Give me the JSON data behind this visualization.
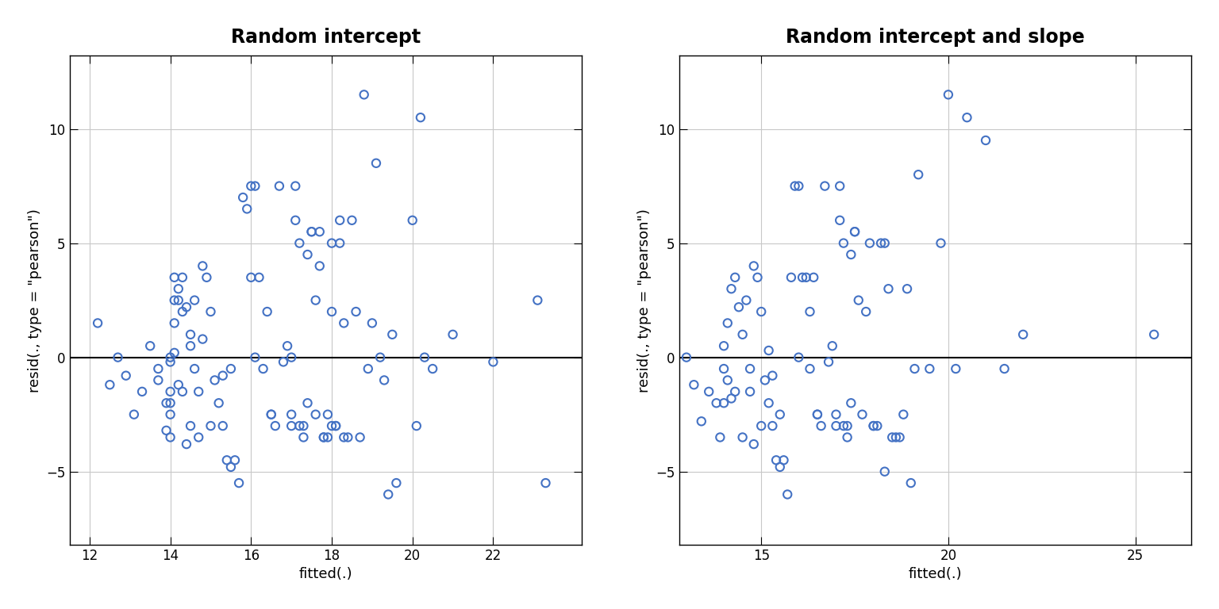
{
  "plot1": {
    "title": "Random intercept",
    "xlabel": "fitted(.)",
    "ylabel": "resid(., type = \"pearson\")",
    "xlim": [
      11.5,
      24.2
    ],
    "ylim": [
      -8.2,
      13.2
    ],
    "xticks": [
      12,
      14,
      16,
      18,
      20,
      22
    ],
    "yticks": [
      -5,
      0,
      5,
      10
    ],
    "fitted": [
      12.2,
      12.5,
      12.7,
      12.9,
      13.1,
      13.3,
      13.5,
      13.7,
      13.7,
      13.9,
      13.9,
      14.0,
      14.0,
      14.0,
      14.0,
      14.0,
      14.0,
      14.1,
      14.1,
      14.1,
      14.1,
      14.2,
      14.2,
      14.2,
      14.3,
      14.3,
      14.3,
      14.4,
      14.4,
      14.5,
      14.5,
      14.5,
      14.6,
      14.6,
      14.7,
      14.7,
      14.8,
      14.8,
      14.9,
      15.0,
      15.0,
      15.1,
      15.2,
      15.3,
      15.3,
      15.4,
      15.5,
      15.5,
      15.6,
      15.7,
      15.8,
      15.9,
      16.0,
      16.0,
      16.1,
      16.1,
      16.2,
      16.3,
      16.4,
      16.5,
      16.5,
      16.6,
      16.7,
      16.8,
      16.9,
      17.0,
      17.0,
      17.0,
      17.1,
      17.1,
      17.2,
      17.2,
      17.3,
      17.3,
      17.4,
      17.4,
      17.5,
      17.5,
      17.6,
      17.6,
      17.7,
      17.7,
      17.8,
      17.8,
      17.9,
      17.9,
      18.0,
      18.0,
      18.0,
      18.1,
      18.1,
      18.2,
      18.2,
      18.3,
      18.3,
      18.4,
      18.5,
      18.6,
      18.7,
      18.8,
      18.9,
      19.0,
      19.1,
      19.2,
      19.3,
      19.4,
      19.5,
      19.6,
      20.0,
      20.1,
      20.2,
      20.3,
      20.5,
      21.0,
      22.0,
      23.1,
      23.3
    ],
    "resid": [
      1.5,
      -1.2,
      0.0,
      -0.8,
      -2.5,
      -1.5,
      0.5,
      -0.5,
      -1.0,
      -3.2,
      -2.0,
      0.0,
      -0.2,
      -1.5,
      -2.0,
      -2.5,
      -3.5,
      0.2,
      1.5,
      2.5,
      3.5,
      3.0,
      2.5,
      -1.2,
      3.5,
      2.0,
      -1.5,
      2.2,
      -3.8,
      1.0,
      0.5,
      -3.0,
      2.5,
      -0.5,
      -1.5,
      -3.5,
      0.8,
      4.0,
      3.5,
      2.0,
      -3.0,
      -1.0,
      -2.0,
      -3.0,
      -0.8,
      -4.5,
      -0.5,
      -4.8,
      -4.5,
      -5.5,
      7.0,
      6.5,
      3.5,
      7.5,
      7.5,
      0.0,
      3.5,
      -0.5,
      2.0,
      -2.5,
      -2.5,
      -3.0,
      7.5,
      -0.2,
      0.5,
      -3.0,
      -2.5,
      0.0,
      6.0,
      7.5,
      5.0,
      -3.0,
      -3.5,
      -3.0,
      4.5,
      -2.0,
      5.5,
      5.5,
      2.5,
      -2.5,
      4.0,
      5.5,
      -3.5,
      -3.5,
      -2.5,
      -3.5,
      2.0,
      5.0,
      -3.0,
      -3.0,
      -3.0,
      6.0,
      5.0,
      -3.5,
      1.5,
      -3.5,
      6.0,
      2.0,
      -3.5,
      11.5,
      -0.5,
      1.5,
      8.5,
      0.0,
      -1.0,
      -6.0,
      1.0,
      -5.5,
      6.0,
      -3.0,
      10.5,
      0.0,
      -0.5,
      1.0,
      -0.2,
      2.5,
      -5.5
    ]
  },
  "plot2": {
    "title": "Random intercept and slope",
    "xlabel": "fitted(.)",
    "ylabel": "resid(., type = \"pearson\")",
    "xlim": [
      12.8,
      26.5
    ],
    "ylim": [
      -8.2,
      13.2
    ],
    "xticks": [
      15,
      20,
      25
    ],
    "yticks": [
      -5,
      0,
      5,
      10
    ],
    "fitted": [
      13.0,
      13.2,
      13.4,
      13.6,
      13.8,
      13.9,
      14.0,
      14.0,
      14.0,
      14.1,
      14.1,
      14.2,
      14.2,
      14.3,
      14.3,
      14.4,
      14.5,
      14.5,
      14.6,
      14.7,
      14.7,
      14.8,
      14.8,
      14.9,
      15.0,
      15.0,
      15.1,
      15.2,
      15.2,
      15.3,
      15.3,
      15.4,
      15.5,
      15.5,
      15.6,
      15.7,
      15.8,
      15.9,
      16.0,
      16.0,
      16.1,
      16.2,
      16.3,
      16.3,
      16.4,
      16.5,
      16.5,
      16.6,
      16.7,
      16.8,
      16.9,
      17.0,
      17.0,
      17.1,
      17.1,
      17.2,
      17.2,
      17.3,
      17.3,
      17.4,
      17.4,
      17.5,
      17.5,
      17.6,
      17.7,
      17.8,
      17.9,
      18.0,
      18.0,
      18.1,
      18.2,
      18.3,
      18.3,
      18.4,
      18.5,
      18.6,
      18.7,
      18.8,
      18.9,
      19.0,
      19.1,
      19.2,
      19.5,
      19.8,
      20.0,
      20.2,
      20.5,
      21.0,
      21.5,
      22.0,
      25.5
    ],
    "resid": [
      0.0,
      -1.2,
      -2.8,
      -1.5,
      -2.0,
      -3.5,
      0.5,
      -0.5,
      -2.0,
      1.5,
      -1.0,
      3.0,
      -1.8,
      3.5,
      -1.5,
      2.2,
      1.0,
      -3.5,
      2.5,
      -0.5,
      -1.5,
      -3.8,
      4.0,
      3.5,
      2.0,
      -3.0,
      -1.0,
      0.3,
      -2.0,
      -3.0,
      -0.8,
      -4.5,
      -2.5,
      -4.8,
      -4.5,
      -6.0,
      3.5,
      7.5,
      7.5,
      0.0,
      3.5,
      3.5,
      -0.5,
      2.0,
      3.5,
      -2.5,
      -2.5,
      -3.0,
      7.5,
      -0.2,
      0.5,
      -3.0,
      -2.5,
      6.0,
      7.5,
      5.0,
      -3.0,
      -3.5,
      -3.0,
      4.5,
      -2.0,
      5.5,
      5.5,
      2.5,
      -2.5,
      2.0,
      5.0,
      -3.0,
      -3.0,
      -3.0,
      5.0,
      5.0,
      -5.0,
      3.0,
      -3.5,
      -3.5,
      -3.5,
      -2.5,
      3.0,
      -5.5,
      -0.5,
      8.0,
      -0.5,
      5.0,
      11.5,
      -0.5,
      10.5,
      9.5,
      -0.5,
      1.0,
      1.0
    ]
  },
  "dot_color": "#4472C4",
  "dot_size": 55,
  "dot_linewidth": 1.5,
  "bg_color": "#FFFFFF",
  "grid_color": "#C8C8C8",
  "hline_color": "#000000",
  "title_fontsize": 17,
  "label_fontsize": 13,
  "tick_fontsize": 12
}
